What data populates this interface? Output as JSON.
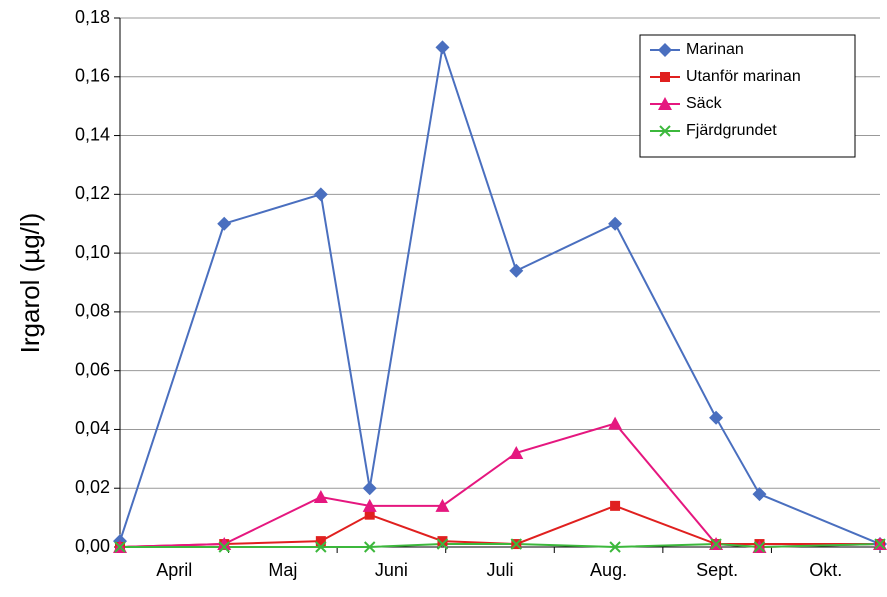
{
  "chart_data": {
    "type": "line",
    "y_label": "Irgarol (µg/l)",
    "categories": [
      "April",
      "Maj",
      "Juni",
      "Juli",
      "Aug.",
      "Sept.",
      "Okt."
    ],
    "x": [
      0,
      0.96,
      1.85,
      2.3,
      2.97,
      3.65,
      4.56,
      5.49,
      5.89,
      7
    ],
    "xlim": [
      0,
      7
    ],
    "ylim": [
      0,
      0.18
    ],
    "yticks": [
      {
        "value": 0,
        "label": "0,00"
      },
      {
        "value": 0.02,
        "label": "0,02"
      },
      {
        "value": 0.04,
        "label": "0,04"
      },
      {
        "value": 0.06,
        "label": "0,06"
      },
      {
        "value": 0.08,
        "label": "0,08"
      },
      {
        "value": 0.1,
        "label": "0,10"
      },
      {
        "value": 0.12,
        "label": "0,12"
      },
      {
        "value": 0.14,
        "label": "0,14"
      },
      {
        "value": 0.16,
        "label": "0,16"
      },
      {
        "value": 0.18,
        "label": "0,18"
      }
    ],
    "grid": true,
    "legend": "upper right",
    "series": [
      {
        "name": "Marinan",
        "color": "#4a6fbf",
        "marker": "diamond",
        "values": [
          0.002,
          0.11,
          0.12,
          0.02,
          0.17,
          0.094,
          0.11,
          0.044,
          0.018,
          0.001
        ]
      },
      {
        "name": "Utanför marinan",
        "color": "#e0201f",
        "marker": "square",
        "values": [
          0,
          0.001,
          0.002,
          0.011,
          0.002,
          0.001,
          0.014,
          0.001,
          0.001,
          0.001
        ]
      },
      {
        "name": "Säck",
        "color": "#e5177f",
        "marker": "triangle",
        "values": [
          0,
          0.001,
          0.017,
          0.014,
          0.014,
          0.032,
          0.042,
          0.001,
          0,
          0.001
        ]
      },
      {
        "name": "Fjärdgrundet",
        "color": "#3cb83c",
        "marker": "x",
        "values": [
          0,
          0,
          0,
          0,
          0.001,
          0.001,
          0,
          0.001,
          0,
          0.001
        ]
      }
    ]
  }
}
